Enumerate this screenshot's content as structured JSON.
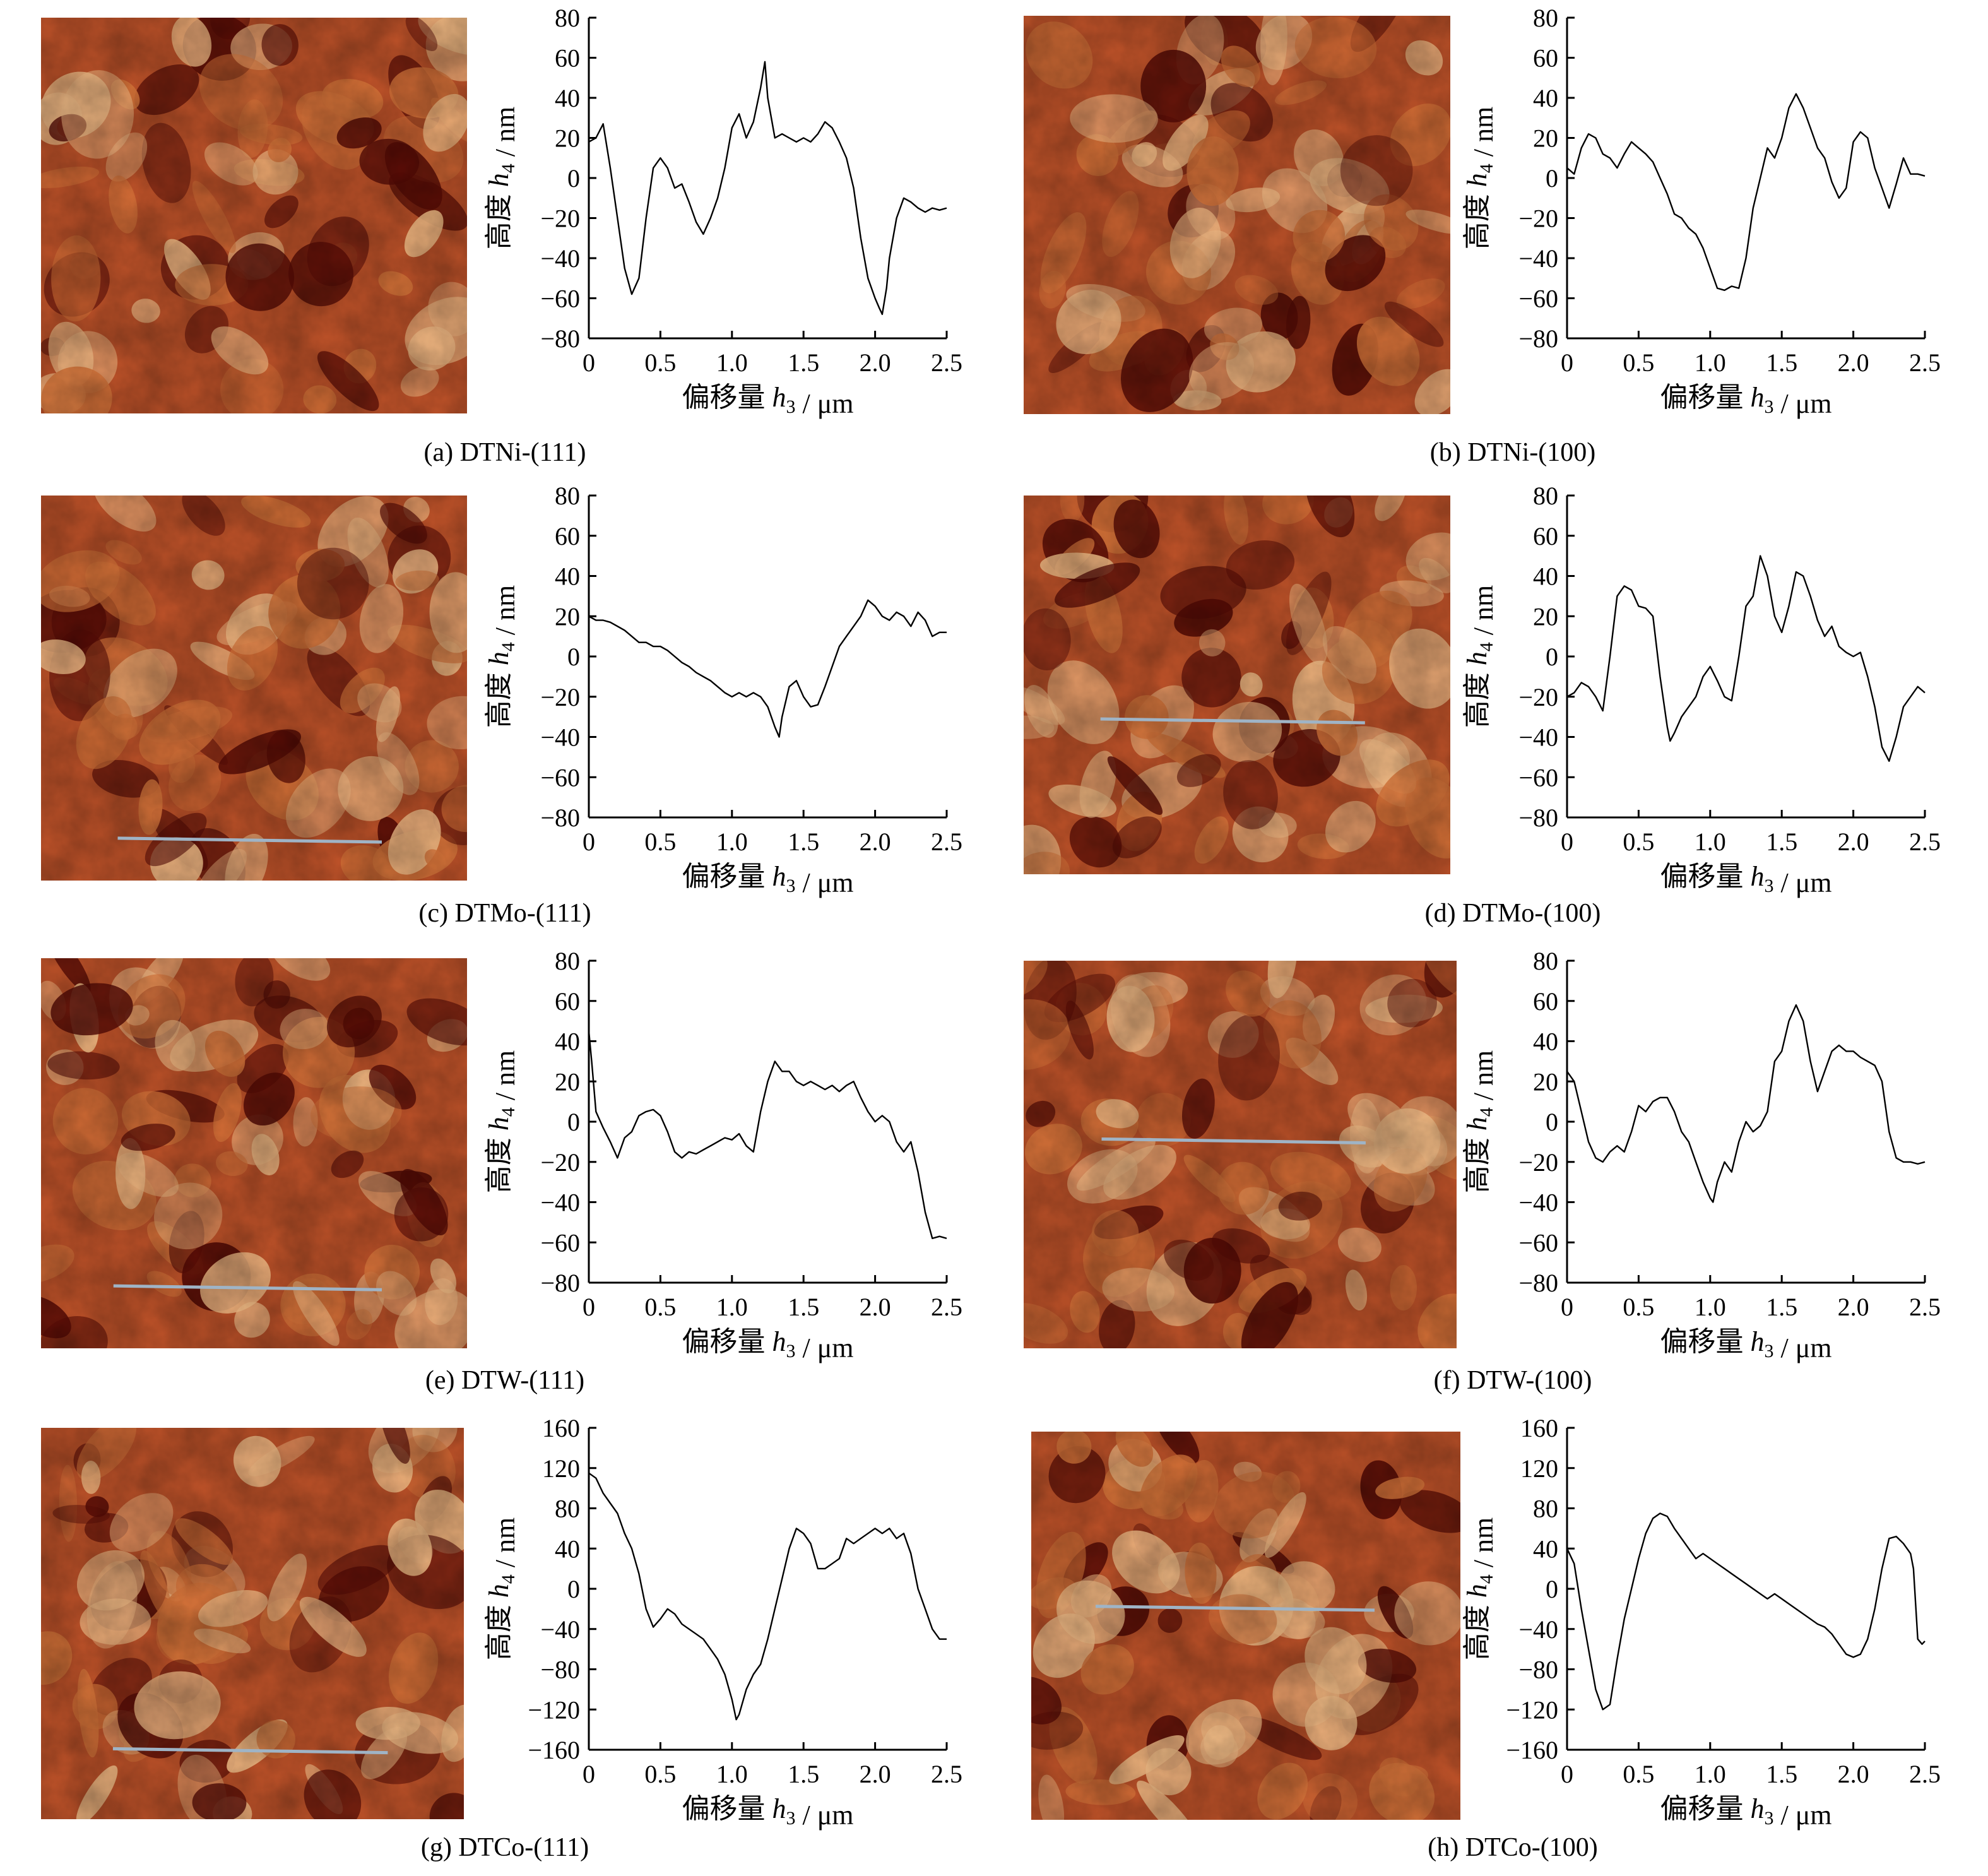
{
  "colors": {
    "afm_light": "#f6c089",
    "afm_mid": "#c2542a",
    "afm_dark": "#5a0c06",
    "scan_line": "#9fb4c6",
    "axis": "#000000"
  },
  "panels": [
    {
      "caption": "(a) DTNi-(111)",
      "image": {
        "kind": "afm-height-map",
        "scan_line": false
      },
      "chart_data": {
        "type": "line",
        "xlabel": "偏移量 h3 / μm",
        "ylabel": "高度 h4 / nm",
        "xlim": [
          0,
          2.5
        ],
        "ylim": [
          -80,
          80
        ],
        "xticks": [
          "0",
          "0.5",
          "1.0",
          "1.5",
          "2.0",
          "2.5"
        ],
        "yticks": [
          "80",
          "60",
          "40",
          "20",
          "0",
          "−20",
          "−40",
          "−60",
          "−80"
        ],
        "x": [
          0,
          0.05,
          0.1,
          0.15,
          0.2,
          0.25,
          0.3,
          0.35,
          0.4,
          0.45,
          0.5,
          0.55,
          0.6,
          0.65,
          0.7,
          0.75,
          0.8,
          0.85,
          0.9,
          0.95,
          1.0,
          1.05,
          1.1,
          1.15,
          1.2,
          1.23,
          1.25,
          1.3,
          1.35,
          1.4,
          1.45,
          1.5,
          1.55,
          1.6,
          1.65,
          1.7,
          1.75,
          1.8,
          1.85,
          1.9,
          1.95,
          2.0,
          2.03,
          2.05,
          2.08,
          2.1,
          2.15,
          2.2,
          2.25,
          2.3,
          2.35,
          2.4,
          2.45,
          2.5
        ],
        "y": [
          18,
          20,
          27,
          5,
          -20,
          -45,
          -58,
          -50,
          -20,
          5,
          10,
          5,
          -5,
          -3,
          -12,
          -22,
          -28,
          -20,
          -10,
          5,
          25,
          32,
          20,
          28,
          45,
          58,
          40,
          20,
          22,
          20,
          18,
          20,
          18,
          22,
          28,
          25,
          18,
          10,
          -5,
          -30,
          -50,
          -60,
          -65,
          -68,
          -55,
          -40,
          -20,
          -10,
          -12,
          -15,
          -17,
          -15,
          -16,
          -15
        ]
      }
    },
    {
      "caption": "(b) DTNi-(100)",
      "image": {
        "kind": "afm-height-map",
        "scan_line": false
      },
      "chart_data": {
        "type": "line",
        "xlabel": "偏移量 h3 / μm",
        "ylabel": "高度 h4 / nm",
        "xlim": [
          0,
          2.5
        ],
        "ylim": [
          -80,
          80
        ],
        "xticks": [
          "0",
          "0.5",
          "1.0",
          "1.5",
          "2.0",
          "2.5"
        ],
        "yticks": [
          "80",
          "60",
          "40",
          "20",
          "0",
          "−20",
          "−40",
          "−60",
          "−80"
        ],
        "x": [
          0,
          0.05,
          0.1,
          0.15,
          0.2,
          0.25,
          0.3,
          0.35,
          0.4,
          0.45,
          0.5,
          0.55,
          0.6,
          0.65,
          0.7,
          0.75,
          0.8,
          0.85,
          0.9,
          0.95,
          1.0,
          1.05,
          1.1,
          1.15,
          1.2,
          1.25,
          1.3,
          1.35,
          1.4,
          1.45,
          1.5,
          1.55,
          1.6,
          1.65,
          1.7,
          1.75,
          1.8,
          1.85,
          1.9,
          1.95,
          2.0,
          2.05,
          2.1,
          2.15,
          2.2,
          2.25,
          2.3,
          2.35,
          2.4,
          2.45,
          2.5
        ],
        "y": [
          5,
          2,
          15,
          22,
          20,
          12,
          10,
          5,
          12,
          18,
          15,
          12,
          8,
          0,
          -8,
          -18,
          -20,
          -25,
          -28,
          -35,
          -45,
          -55,
          -56,
          -54,
          -55,
          -40,
          -15,
          0,
          15,
          10,
          20,
          35,
          42,
          35,
          25,
          15,
          10,
          -2,
          -10,
          -5,
          18,
          23,
          20,
          5,
          -5,
          -15,
          -3,
          10,
          2,
          2,
          1
        ]
      }
    },
    {
      "caption": "(c) DTMo-(111)",
      "image": {
        "kind": "afm-height-map",
        "scan_line": true
      },
      "chart_data": {
        "type": "line",
        "xlabel": "偏移量 h3 / μm",
        "ylabel": "高度 h4 / nm",
        "xlim": [
          0,
          2.5
        ],
        "ylim": [
          -80,
          80
        ],
        "xticks": [
          "0",
          "0.5",
          "1.0",
          "1.5",
          "2.0",
          "2.5"
        ],
        "yticks": [
          "80",
          "60",
          "40",
          "20",
          "0",
          "−20",
          "−40",
          "−60",
          "−80"
        ],
        "x": [
          0,
          0.05,
          0.1,
          0.15,
          0.2,
          0.25,
          0.3,
          0.35,
          0.4,
          0.45,
          0.5,
          0.55,
          0.6,
          0.65,
          0.7,
          0.75,
          0.8,
          0.85,
          0.9,
          0.95,
          1.0,
          1.05,
          1.1,
          1.15,
          1.2,
          1.25,
          1.3,
          1.33,
          1.35,
          1.4,
          1.45,
          1.5,
          1.55,
          1.6,
          1.65,
          1.7,
          1.75,
          1.8,
          1.85,
          1.9,
          1.95,
          2.0,
          2.05,
          2.1,
          2.15,
          2.2,
          2.25,
          2.3,
          2.35,
          2.4,
          2.45,
          2.5
        ],
        "y": [
          20,
          18,
          18,
          17,
          15,
          13,
          10,
          7,
          7,
          5,
          5,
          3,
          0,
          -3,
          -5,
          -8,
          -10,
          -12,
          -15,
          -18,
          -20,
          -18,
          -20,
          -18,
          -20,
          -25,
          -35,
          -40,
          -30,
          -15,
          -12,
          -20,
          -25,
          -24,
          -15,
          -5,
          5,
          10,
          15,
          20,
          28,
          25,
          20,
          18,
          22,
          20,
          15,
          22,
          18,
          10,
          12,
          12
        ]
      }
    },
    {
      "caption": "(d) DTMo-(100)",
      "image": {
        "kind": "afm-height-map",
        "scan_line": true
      },
      "chart_data": {
        "type": "line",
        "xlabel": "偏移量 h3 / μm",
        "ylabel": "高度 h4 / nm",
        "xlim": [
          0,
          2.5
        ],
        "ylim": [
          -80,
          80
        ],
        "xticks": [
          "0",
          "0.5",
          "1.0",
          "1.5",
          "2.0",
          "2.5"
        ],
        "yticks": [
          "80",
          "60",
          "40",
          "20",
          "0",
          "−20",
          "−40",
          "−60",
          "−80"
        ],
        "x": [
          0,
          0.05,
          0.1,
          0.15,
          0.2,
          0.25,
          0.3,
          0.35,
          0.4,
          0.45,
          0.5,
          0.55,
          0.6,
          0.65,
          0.7,
          0.72,
          0.75,
          0.8,
          0.85,
          0.9,
          0.95,
          1.0,
          1.05,
          1.1,
          1.15,
          1.2,
          1.25,
          1.3,
          1.35,
          1.4,
          1.45,
          1.5,
          1.55,
          1.6,
          1.65,
          1.7,
          1.75,
          1.8,
          1.85,
          1.9,
          1.95,
          2.0,
          2.05,
          2.1,
          2.15,
          2.2,
          2.25,
          2.3,
          2.35,
          2.4,
          2.45,
          2.5
        ],
        "y": [
          -20,
          -18,
          -13,
          -15,
          -20,
          -27,
          0,
          30,
          35,
          33,
          25,
          24,
          20,
          -10,
          -35,
          -42,
          -38,
          -30,
          -25,
          -20,
          -10,
          -5,
          -12,
          -20,
          -22,
          0,
          25,
          30,
          50,
          40,
          20,
          12,
          25,
          42,
          40,
          30,
          18,
          10,
          15,
          5,
          2,
          0,
          2,
          -10,
          -25,
          -45,
          -52,
          -40,
          -25,
          -20,
          -15,
          -18
        ]
      }
    },
    {
      "caption": "(e) DTW-(111)",
      "image": {
        "kind": "afm-height-map",
        "scan_line": true
      },
      "chart_data": {
        "type": "line",
        "xlabel": "偏移量 h3 / μm",
        "ylabel": "高度 h4 / nm",
        "xlim": [
          0,
          2.5
        ],
        "ylim": [
          -80,
          80
        ],
        "xticks": [
          "0",
          "0.5",
          "1.0",
          "1.5",
          "2.0",
          "2.5"
        ],
        "yticks": [
          "80",
          "60",
          "40",
          "20",
          "0",
          "−20",
          "−40",
          "−60",
          "−80"
        ],
        "x": [
          0,
          0.02,
          0.05,
          0.1,
          0.15,
          0.2,
          0.25,
          0.3,
          0.35,
          0.4,
          0.45,
          0.5,
          0.55,
          0.6,
          0.65,
          0.7,
          0.75,
          0.8,
          0.85,
          0.9,
          0.95,
          1.0,
          1.05,
          1.1,
          1.15,
          1.2,
          1.25,
          1.3,
          1.35,
          1.4,
          1.45,
          1.5,
          1.55,
          1.6,
          1.65,
          1.7,
          1.75,
          1.8,
          1.85,
          1.9,
          1.95,
          2.0,
          2.05,
          2.1,
          2.15,
          2.2,
          2.25,
          2.3,
          2.35,
          2.4,
          2.45,
          2.5
        ],
        "y": [
          45,
          30,
          5,
          -3,
          -10,
          -18,
          -8,
          -5,
          3,
          5,
          6,
          3,
          -5,
          -15,
          -18,
          -15,
          -16,
          -14,
          -12,
          -10,
          -8,
          -9,
          -6,
          -12,
          -15,
          5,
          20,
          30,
          25,
          25,
          20,
          18,
          20,
          18,
          16,
          18,
          15,
          18,
          20,
          12,
          5,
          0,
          3,
          0,
          -10,
          -15,
          -10,
          -25,
          -45,
          -58,
          -57,
          -58
        ]
      }
    },
    {
      "caption": "(f) DTW-(100)",
      "image": {
        "kind": "afm-height-map",
        "scan_line": true
      },
      "chart_data": {
        "type": "line",
        "xlabel": "偏移量 h3 / μm",
        "ylabel": "高度 h4 / nm",
        "xlim": [
          0,
          2.5
        ],
        "ylim": [
          -80,
          80
        ],
        "xticks": [
          "0",
          "0.5",
          "1.0",
          "1.5",
          "2.0",
          "2.5"
        ],
        "yticks": [
          "80",
          "60",
          "40",
          "20",
          "0",
          "−20",
          "−40",
          "−60",
          "−80"
        ],
        "x": [
          0,
          0.05,
          0.1,
          0.15,
          0.2,
          0.25,
          0.3,
          0.35,
          0.4,
          0.45,
          0.5,
          0.55,
          0.6,
          0.65,
          0.7,
          0.75,
          0.8,
          0.85,
          0.9,
          0.95,
          1.0,
          1.02,
          1.05,
          1.1,
          1.15,
          1.2,
          1.25,
          1.3,
          1.35,
          1.4,
          1.45,
          1.5,
          1.55,
          1.6,
          1.65,
          1.7,
          1.75,
          1.8,
          1.85,
          1.9,
          1.95,
          2.0,
          2.05,
          2.1,
          2.15,
          2.2,
          2.25,
          2.3,
          2.35,
          2.4,
          2.45,
          2.5
        ],
        "y": [
          25,
          20,
          5,
          -10,
          -18,
          -20,
          -15,
          -12,
          -15,
          -5,
          8,
          5,
          10,
          12,
          12,
          5,
          -5,
          -10,
          -20,
          -30,
          -38,
          -40,
          -30,
          -20,
          -25,
          -10,
          0,
          -5,
          -2,
          5,
          30,
          35,
          50,
          58,
          50,
          30,
          15,
          25,
          35,
          38,
          35,
          35,
          32,
          30,
          28,
          20,
          -5,
          -18,
          -20,
          -20,
          -21,
          -20
        ]
      }
    },
    {
      "caption": "(g) DTCo-(111)",
      "image": {
        "kind": "afm-height-map",
        "scan_line": true
      },
      "chart_data": {
        "type": "line",
        "xlabel": "偏移量 h3 / μm",
        "ylabel": "高度 h4 / nm",
        "xlim": [
          0,
          2.5
        ],
        "ylim": [
          -160,
          160
        ],
        "xticks": [
          "0",
          "0.5",
          "1.0",
          "1.5",
          "2.0",
          "2.5"
        ],
        "yticks": [
          "160",
          "120",
          "80",
          "40",
          "0",
          "−40",
          "−80",
          "−120",
          "−160"
        ],
        "x": [
          0,
          0.05,
          0.1,
          0.15,
          0.2,
          0.25,
          0.3,
          0.35,
          0.4,
          0.45,
          0.5,
          0.55,
          0.6,
          0.65,
          0.7,
          0.75,
          0.8,
          0.85,
          0.9,
          0.95,
          1.0,
          1.03,
          1.05,
          1.1,
          1.15,
          1.2,
          1.25,
          1.3,
          1.35,
          1.4,
          1.45,
          1.5,
          1.55,
          1.6,
          1.65,
          1.7,
          1.75,
          1.8,
          1.85,
          1.9,
          1.95,
          2.0,
          2.05,
          2.1,
          2.15,
          2.2,
          2.25,
          2.3,
          2.35,
          2.4,
          2.45,
          2.5
        ],
        "y": [
          115,
          110,
          95,
          85,
          75,
          55,
          40,
          15,
          -20,
          -38,
          -30,
          -20,
          -25,
          -35,
          -40,
          -45,
          -50,
          -60,
          -70,
          -85,
          -110,
          -130,
          -125,
          -100,
          -85,
          -75,
          -50,
          -20,
          10,
          40,
          60,
          55,
          45,
          20,
          20,
          25,
          30,
          50,
          45,
          50,
          55,
          60,
          55,
          60,
          50,
          55,
          35,
          0,
          -20,
          -40,
          -50,
          -50
        ]
      }
    },
    {
      "caption": "(h) DTCo-(100)",
      "image": {
        "kind": "afm-height-map",
        "scan_line": true
      },
      "chart_data": {
        "type": "line",
        "xlabel": "偏移量 h3 / μm",
        "ylabel": "高度 h4 / nm",
        "xlim": [
          0,
          2.5
        ],
        "ylim": [
          -160,
          160
        ],
        "xticks": [
          "0",
          "0.5",
          "1.0",
          "1.5",
          "2.0",
          "2.5"
        ],
        "yticks": [
          "160",
          "120",
          "80",
          "40",
          "0",
          "−40",
          "−80",
          "−120",
          "−160"
        ],
        "x": [
          0,
          0.05,
          0.1,
          0.15,
          0.2,
          0.25,
          0.3,
          0.35,
          0.4,
          0.45,
          0.5,
          0.55,
          0.6,
          0.65,
          0.7,
          0.75,
          0.8,
          0.85,
          0.9,
          0.95,
          1.0,
          1.05,
          1.1,
          1.15,
          1.2,
          1.25,
          1.3,
          1.35,
          1.4,
          1.45,
          1.5,
          1.55,
          1.6,
          1.65,
          1.7,
          1.75,
          1.8,
          1.85,
          1.9,
          1.95,
          2.0,
          2.05,
          2.1,
          2.15,
          2.2,
          2.25,
          2.3,
          2.35,
          2.4,
          2.42,
          2.45,
          2.48,
          2.5
        ],
        "y": [
          40,
          25,
          -20,
          -60,
          -100,
          -120,
          -115,
          -70,
          -30,
          0,
          30,
          55,
          70,
          75,
          72,
          60,
          50,
          40,
          30,
          35,
          30,
          25,
          20,
          15,
          10,
          5,
          0,
          -5,
          -10,
          -5,
          -10,
          -15,
          -20,
          -25,
          -30,
          -35,
          -38,
          -45,
          -55,
          -65,
          -68,
          -65,
          -50,
          -20,
          20,
          50,
          52,
          45,
          35,
          20,
          -50,
          -55,
          -52
        ]
      }
    }
  ]
}
